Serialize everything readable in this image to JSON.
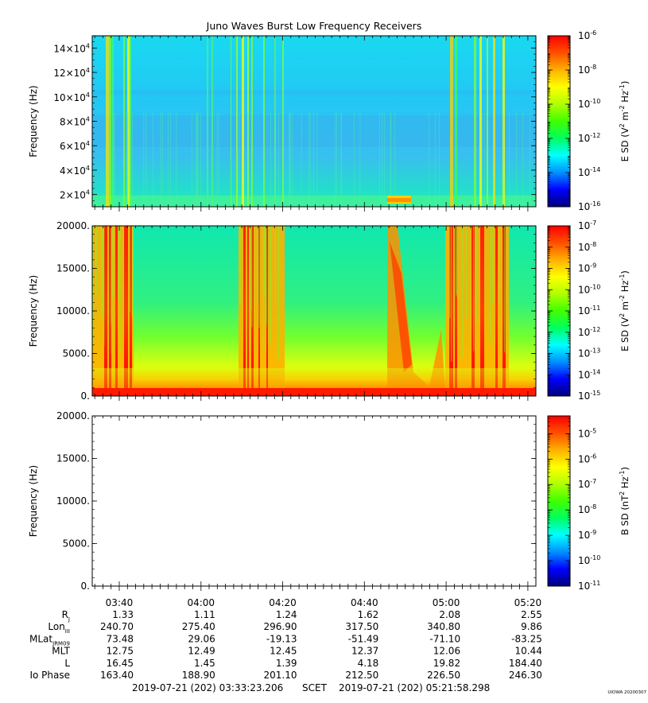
{
  "title": "Juno Waves Burst Low Frequency Receivers",
  "footer": {
    "start": "2019-07-21 (202) 03:33:23.206",
    "scet": "SCET",
    "end": "2019-07-21 (202) 05:21:58.298",
    "stamp": "UIOWA 20200307"
  },
  "colorbar_colors": [
    "#00007a",
    "#0000ff",
    "#0090ff",
    "#00ffff",
    "#00ff60",
    "#40ff00",
    "#b0ff00",
    "#ffff00",
    "#ffb000",
    "#ff5000",
    "#ff0000"
  ],
  "chart_data": [
    {
      "type": "heatmap",
      "ylabel": "Frequency (Hz)",
      "yticks": [
        {
          "value": 20000,
          "mant": "2×10",
          "exp": "4"
        },
        {
          "value": 40000,
          "mant": "4×10",
          "exp": "4"
        },
        {
          "value": 60000,
          "mant": "6×10",
          "exp": "4"
        },
        {
          "value": 80000,
          "mant": "8×10",
          "exp": "4"
        },
        {
          "value": 100000,
          "mant": "10×10",
          "exp": "4"
        },
        {
          "value": 120000,
          "mant": "12×10",
          "exp": "4"
        },
        {
          "value": 140000,
          "mant": "14×10",
          "exp": "4"
        }
      ],
      "ylim": [
        10000,
        150000
      ],
      "colorbar": {
        "label": "E SD",
        "unit_base": "(V",
        "unit_rest": " m",
        "unit_rest2": " Hz",
        "scale": "log",
        "range": [
          -16,
          -6
        ],
        "ticks": [
          {
            "exp": "-6",
            "value": -6
          },
          {
            "exp": "-8",
            "value": -8
          },
          {
            "exp": "-10",
            "value": -10
          },
          {
            "exp": "-12",
            "value": -12
          },
          {
            "exp": "-14",
            "value": -14
          },
          {
            "exp": "-16",
            "value": -16
          }
        ]
      }
    },
    {
      "type": "heatmap",
      "ylabel": "Frequency (Hz)",
      "yticks": [
        {
          "value": 0,
          "label": "0."
        },
        {
          "value": 5000,
          "label": "5000."
        },
        {
          "value": 10000,
          "label": "10000."
        },
        {
          "value": 15000,
          "label": "15000."
        },
        {
          "value": 20000,
          "label": "20000."
        }
      ],
      "ylim": [
        0,
        20000
      ],
      "colorbar": {
        "label": "E SD",
        "unit_base": "(V",
        "unit_rest": " m",
        "unit_rest2": " Hz",
        "scale": "log",
        "range": [
          -15,
          -7
        ],
        "ticks": [
          {
            "exp": "-7",
            "value": -7
          },
          {
            "exp": "-8",
            "value": -8
          },
          {
            "exp": "-9",
            "value": -9
          },
          {
            "exp": "-10",
            "value": -10
          },
          {
            "exp": "-11",
            "value": -11
          },
          {
            "exp": "-12",
            "value": -12
          },
          {
            "exp": "-13",
            "value": -13
          },
          {
            "exp": "-14",
            "value": -14
          },
          {
            "exp": "-15",
            "value": -15
          }
        ]
      }
    },
    {
      "type": "heatmap",
      "ylabel": "Frequency (Hz)",
      "yticks": [
        {
          "value": 0,
          "label": "0."
        },
        {
          "value": 5000,
          "label": "5000."
        },
        {
          "value": 10000,
          "label": "10000."
        },
        {
          "value": 15000,
          "label": "15000."
        },
        {
          "value": 20000,
          "label": "20000."
        }
      ],
      "ylim": [
        0,
        20000
      ],
      "colorbar": {
        "label": "B SD",
        "unit_base": "(nT",
        "unit_rest": " Hz",
        "scale": "log",
        "range": [
          -11,
          -4.3
        ],
        "ticks": [
          {
            "exp": "-5",
            "value": -5
          },
          {
            "exp": "-6",
            "value": -6
          },
          {
            "exp": "-7",
            "value": -7
          },
          {
            "exp": "-8",
            "value": -8
          },
          {
            "exp": "-9",
            "value": -9
          },
          {
            "exp": "-10",
            "value": -10
          },
          {
            "exp": "-11",
            "value": -11
          }
        ]
      }
    }
  ],
  "time_axis": {
    "start_minutes": 213.3868,
    "end_minutes": 321.9716,
    "major_ticks": [
      {
        "minutes": 220,
        "label": "03:40"
      },
      {
        "minutes": 240,
        "label": "04:00"
      },
      {
        "minutes": 260,
        "label": "04:20"
      },
      {
        "minutes": 280,
        "label": "04:40"
      },
      {
        "minutes": 300,
        "label": "05:00"
      },
      {
        "minutes": 320,
        "label": "05:20"
      }
    ]
  },
  "ephemeris": [
    {
      "label": "R",
      "sub": "J",
      "values": [
        "1.33",
        "1.11",
        "1.24",
        "1.62",
        "2.08",
        "2.55"
      ]
    },
    {
      "label": "Lon",
      "sub": "III",
      "values": [
        "240.70",
        "275.40",
        "296.90",
        "317.50",
        "340.80",
        "9.86"
      ]
    },
    {
      "label": "MLat",
      "sub": "JRM09",
      "values": [
        "73.48",
        "29.06",
        "-19.13",
        "-51.49",
        "-71.10",
        "-83.25"
      ]
    },
    {
      "label": "MLT",
      "sub": "",
      "values": [
        "12.75",
        "12.49",
        "12.45",
        "12.37",
        "12.06",
        "10.44"
      ]
    },
    {
      "label": "L",
      "sub": "",
      "values": [
        "16.45",
        "1.45",
        "1.39",
        "4.18",
        "19.82",
        "184.40"
      ]
    },
    {
      "label": "Io Phase",
      "sub": "",
      "values": [
        "163.40",
        "188.90",
        "201.10",
        "212.50",
        "226.50",
        "246.30"
      ]
    }
  ]
}
